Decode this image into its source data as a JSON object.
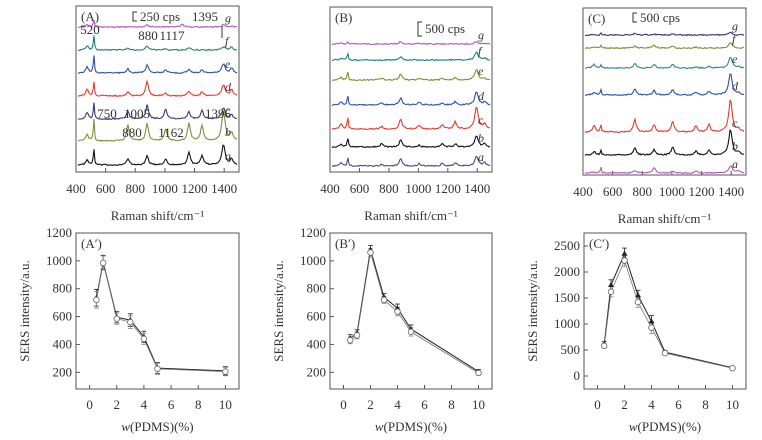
{
  "chart_data": [
    {
      "id": "A",
      "type": "line",
      "panel_label": "(A)",
      "xlabel": "Raman shift/cm⁻¹",
      "xlim": [
        400,
        1500
      ],
      "xticks": [
        400,
        600,
        800,
        1000,
        1200,
        1400
      ],
      "scale_bar_label": "250 cps",
      "annotations": [
        "520",
        "880",
        "1117",
        "1395",
        "750",
        "1005",
        "1396",
        "880",
        "1162"
      ],
      "series": [
        {
          "name": "a",
          "color": "#111111",
          "peaks": [
            [
              475,
              0.25
            ],
            [
              520,
              0.9
            ],
            [
              750,
              0.3
            ],
            [
              880,
              0.45
            ],
            [
              1005,
              0.3
            ],
            [
              1162,
              0.65
            ],
            [
              1250,
              0.45
            ],
            [
              1395,
              1.0
            ],
            [
              1450,
              0.3
            ]
          ]
        },
        {
          "name": "b",
          "color": "#8a8a3c",
          "peaks": [
            [
              475,
              0.35
            ],
            [
              520,
              1.2
            ],
            [
              750,
              0.8
            ],
            [
              880,
              0.9
            ],
            [
              1005,
              0.6
            ],
            [
              1162,
              0.9
            ],
            [
              1250,
              0.8
            ],
            [
              1395,
              1.5
            ],
            [
              1450,
              0.4
            ]
          ]
        },
        {
          "name": "c",
          "color": "#3a3670",
          "peaks": [
            [
              475,
              0.3
            ],
            [
              520,
              0.9
            ],
            [
              750,
              0.4
            ],
            [
              880,
              0.7
            ],
            [
              1005,
              0.5
            ],
            [
              1162,
              0.35
            ],
            [
              1250,
              0.45
            ],
            [
              1395,
              0.55
            ],
            [
              1450,
              0.2
            ]
          ]
        },
        {
          "name": "d",
          "color": "#e8392a",
          "peaks": [
            [
              475,
              0.35
            ],
            [
              520,
              0.8
            ],
            [
              750,
              0.2
            ],
            [
              880,
              0.75
            ],
            [
              1005,
              0.15
            ],
            [
              1162,
              0.25
            ],
            [
              1250,
              0.2
            ],
            [
              1395,
              0.55
            ],
            [
              1450,
              0.3
            ]
          ]
        },
        {
          "name": "e",
          "color": "#2e4fae",
          "peaks": [
            [
              475,
              0.3
            ],
            [
              520,
              0.95
            ],
            [
              750,
              0.2
            ],
            [
              880,
              0.4
            ],
            [
              1005,
              0.15
            ],
            [
              1162,
              0.2
            ],
            [
              1250,
              0.15
            ],
            [
              1395,
              0.45
            ],
            [
              1450,
              0.25
            ]
          ]
        },
        {
          "name": "f",
          "color": "#1e8078",
          "peaks": [
            [
              475,
              0.2
            ],
            [
              520,
              0.8
            ],
            [
              750,
              0.1
            ],
            [
              880,
              0.2
            ],
            [
              1005,
              0.05
            ],
            [
              1162,
              0.1
            ],
            [
              1395,
              0.15
            ],
            [
              1450,
              0.15
            ]
          ]
        },
        {
          "name": "g",
          "color": "#b05cb8",
          "peaks": [
            [
              475,
              0.1
            ],
            [
              520,
              0.4
            ],
            [
              880,
              0.1
            ],
            [
              1117,
              0.15
            ],
            [
              1395,
              0.1
            ],
            [
              1450,
              0.05
            ]
          ]
        }
      ]
    },
    {
      "id": "B",
      "type": "line",
      "panel_label": "(B)",
      "xlabel": "Raman shift/cm⁻¹",
      "xlim": [
        400,
        1500
      ],
      "xticks": [
        400,
        600,
        800,
        1000,
        1200,
        1400
      ],
      "scale_bar_label": "500 cps",
      "series": [
        {
          "name": "a",
          "color": "#4a4a88",
          "peaks": [
            [
              475,
              0.2
            ],
            [
              520,
              0.6
            ],
            [
              750,
              0.1
            ],
            [
              880,
              0.5
            ],
            [
              1005,
              0.15
            ],
            [
              1162,
              0.15
            ],
            [
              1250,
              0.2
            ],
            [
              1395,
              0.6
            ],
            [
              1450,
              0.2
            ]
          ]
        },
        {
          "name": "b",
          "color": "#111111",
          "peaks": [
            [
              475,
              0.2
            ],
            [
              520,
              0.65
            ],
            [
              750,
              0.2
            ],
            [
              880,
              0.45
            ],
            [
              1005,
              0.1
            ],
            [
              1162,
              0.2
            ],
            [
              1250,
              0.2
            ],
            [
              1395,
              0.7
            ],
            [
              1450,
              0.2
            ]
          ]
        },
        {
          "name": "c",
          "color": "#e8392a",
          "peaks": [
            [
              475,
              0.3
            ],
            [
              520,
              0.9
            ],
            [
              750,
              0.15
            ],
            [
              880,
              0.65
            ],
            [
              1005,
              0.25
            ],
            [
              1162,
              0.25
            ],
            [
              1250,
              0.45
            ],
            [
              1395,
              1.4
            ],
            [
              1450,
              0.3
            ]
          ]
        },
        {
          "name": "d",
          "color": "#2e4fae",
          "peaks": [
            [
              475,
              0.2
            ],
            [
              520,
              0.75
            ],
            [
              750,
              0.15
            ],
            [
              880,
              0.45
            ],
            [
              1005,
              0.2
            ],
            [
              1162,
              0.15
            ],
            [
              1250,
              0.2
            ],
            [
              1395,
              0.85
            ],
            [
              1450,
              0.2
            ]
          ]
        },
        {
          "name": "e",
          "color": "#8a8a3c",
          "peaks": [
            [
              475,
              0.15
            ],
            [
              520,
              0.6
            ],
            [
              750,
              0.1
            ],
            [
              880,
              0.4
            ],
            [
              1005,
              0.1
            ],
            [
              1162,
              0.1
            ],
            [
              1250,
              0.15
            ],
            [
              1395,
              0.65
            ],
            [
              1450,
              0.1
            ]
          ]
        },
        {
          "name": "f",
          "color": "#1e8078",
          "peaks": [
            [
              475,
              0.1
            ],
            [
              520,
              0.5
            ],
            [
              880,
              0.2
            ],
            [
              1395,
              0.5
            ],
            [
              1450,
              0.1
            ]
          ]
        },
        {
          "name": "g",
          "color": "#b05cb8",
          "peaks": [
            [
              475,
              0.05
            ],
            [
              520,
              0.2
            ],
            [
              880,
              0.15
            ],
            [
              1005,
              0.05
            ],
            [
              1395,
              0.15
            ],
            [
              1450,
              0.05
            ]
          ]
        }
      ]
    },
    {
      "id": "C",
      "type": "line",
      "panel_label": "(C)",
      "xlabel": "Raman shift/cm⁻¹",
      "xlim": [
        400,
        1500
      ],
      "xticks": [
        400,
        600,
        800,
        1000,
        1200,
        1400
      ],
      "scale_bar_label": "500 cps",
      "series": [
        {
          "name": "a",
          "color": "#b05cb8",
          "peaks": [
            [
              475,
              0.05
            ],
            [
              520,
              0.35
            ],
            [
              750,
              0.15
            ],
            [
              880,
              0.3
            ],
            [
              1005,
              0.1
            ],
            [
              1162,
              0.1
            ],
            [
              1395,
              0.4
            ],
            [
              1450,
              0.15
            ]
          ]
        },
        {
          "name": "b",
          "color": "#111111",
          "peaks": [
            [
              475,
              0.2
            ],
            [
              520,
              0.3
            ],
            [
              750,
              0.4
            ],
            [
              880,
              0.3
            ],
            [
              1005,
              0.45
            ],
            [
              1162,
              0.2
            ],
            [
              1250,
              0.25
            ],
            [
              1395,
              1.4
            ],
            [
              1450,
              0.15
            ]
          ]
        },
        {
          "name": "c",
          "color": "#e8392a",
          "peaks": [
            [
              475,
              0.35
            ],
            [
              520,
              0.45
            ],
            [
              750,
              0.7
            ],
            [
              880,
              0.4
            ],
            [
              1005,
              0.6
            ],
            [
              1162,
              0.35
            ],
            [
              1250,
              0.4
            ],
            [
              1395,
              1.8
            ],
            [
              1450,
              0.15
            ]
          ]
        },
        {
          "name": "d",
          "color": "#2e4fae",
          "peaks": [
            [
              475,
              0.15
            ],
            [
              520,
              0.3
            ],
            [
              750,
              0.35
            ],
            [
              880,
              0.25
            ],
            [
              1005,
              0.3
            ],
            [
              1162,
              0.15
            ],
            [
              1250,
              0.2
            ],
            [
              1395,
              1.2
            ],
            [
              1450,
              0.1
            ]
          ]
        },
        {
          "name": "e",
          "color": "#2f8a86",
          "peaks": [
            [
              475,
              0.2
            ],
            [
              520,
              0.2
            ],
            [
              750,
              0.25
            ],
            [
              880,
              0.2
            ],
            [
              1005,
              0.2
            ],
            [
              1162,
              0.05
            ],
            [
              1250,
              0.1
            ],
            [
              1395,
              0.6
            ],
            [
              1450,
              0.05
            ]
          ]
        },
        {
          "name": "f",
          "color": "#8a8a3c",
          "peaks": [
            [
              475,
              0.05
            ],
            [
              520,
              0.2
            ],
            [
              750,
              0.1
            ],
            [
              880,
              0.15
            ],
            [
              1005,
              0.1
            ],
            [
              1162,
              0.05
            ],
            [
              1395,
              0.3
            ]
          ]
        },
        {
          "name": "g",
          "color": "#3a3670",
          "peaks": [
            [
              520,
              0.1
            ],
            [
              750,
              0.1
            ],
            [
              880,
              0.05
            ],
            [
              1005,
              0.05
            ],
            [
              1395,
              0.15
            ]
          ]
        }
      ]
    },
    {
      "id": "A'",
      "type": "line",
      "panel_label": "(A′)",
      "xlabel": "w(PDMS)(%)",
      "ylabel": "SERS intensity/a.u.",
      "xlim": [
        -1,
        11
      ],
      "ylim": [
        80,
        1200
      ],
      "xticks": [
        0,
        2,
        4,
        6,
        8,
        10
      ],
      "yticks": [
        200,
        400,
        600,
        800,
        1000,
        1200
      ],
      "x": [
        0.5,
        1,
        2,
        3,
        4,
        5,
        10
      ],
      "series": [
        {
          "name": "filled",
          "values": [
            735,
            990,
            595,
            575,
            455,
            230,
            210
          ]
        },
        {
          "name": "open",
          "values": [
            720,
            985,
            585,
            560,
            440,
            225,
            205
          ]
        }
      ],
      "errors": [
        60,
        50,
        40,
        45,
        40,
        40,
        30
      ]
    },
    {
      "id": "B'",
      "type": "line",
      "panel_label": "(B′)",
      "xlabel": "w(PDMS)(%)",
      "ylabel": "SERS intensity/a.u.",
      "xlim": [
        -1,
        11
      ],
      "ylim": [
        80,
        1200
      ],
      "xticks": [
        0,
        2,
        4,
        6,
        8,
        10
      ],
      "yticks": [
        200,
        400,
        600,
        800,
        1000,
        1200
      ],
      "x": [
        0.5,
        1,
        2,
        3,
        4,
        5,
        10
      ],
      "series": [
        {
          "name": "filled",
          "values": [
            445,
            480,
            1080,
            740,
            660,
            510,
            205
          ]
        },
        {
          "name": "open",
          "values": [
            430,
            465,
            1060,
            720,
            635,
            490,
            195
          ]
        }
      ],
      "errors": [
        25,
        25,
        30,
        25,
        30,
        30,
        15
      ]
    },
    {
      "id": "C'",
      "type": "line",
      "panel_label": "(C′)",
      "xlabel": "w(PDMS)(%)",
      "ylabel": "SERS intensity/a.u.",
      "xlim": [
        -1,
        11
      ],
      "ylim": [
        -250,
        2750
      ],
      "xticks": [
        0,
        2,
        4,
        6,
        8,
        10
      ],
      "yticks": [
        0,
        500,
        1000,
        1500,
        2000,
        2500
      ],
      "x": [
        0.5,
        1,
        2,
        3,
        4,
        5,
        10
      ],
      "series": [
        {
          "name": "filled",
          "values": [
            620,
            1750,
            2350,
            1550,
            1050,
            460,
            160
          ]
        },
        {
          "name": "open",
          "values": [
            580,
            1620,
            2220,
            1420,
            930,
            440,
            150
          ]
        }
      ],
      "errors": [
        40,
        100,
        110,
        100,
        110,
        30,
        25
      ]
    }
  ]
}
